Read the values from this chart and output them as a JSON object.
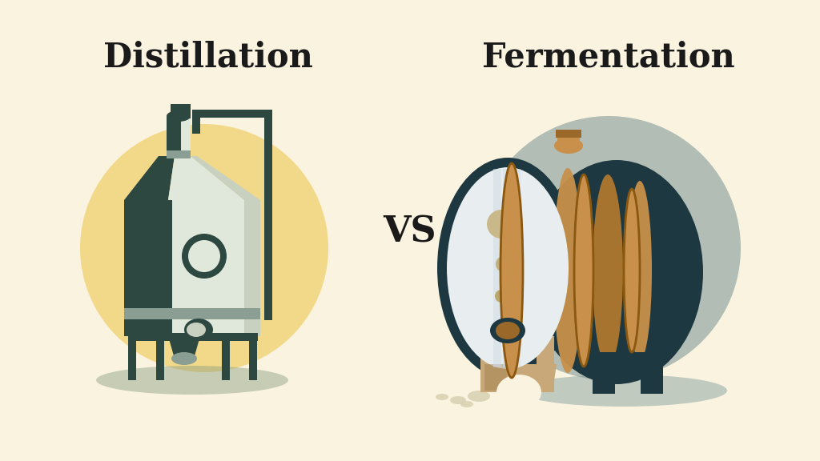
{
  "bg_color": "#FAF3E0",
  "title_left": "Distillation",
  "title_right": "Fermentation",
  "vs_text": "VS",
  "title_fontsize": 30,
  "vs_fontsize": 32,
  "title_color": "#1a1a1a",
  "dist_circle_color": "#F2D98A",
  "ferm_circle_color": "#B2BEB5",
  "still_silver": "#C8D0C0",
  "still_silver_light": "#E0E8DC",
  "still_silver_dark": "#8A9E94",
  "still_dark": "#2D4840",
  "barrel_wood": "#C8904A",
  "barrel_wood_dark": "#9A6828",
  "barrel_dark": "#1D3840",
  "barrel_face_bg": "#E8EEF0",
  "barrel_face_light": "#D0DCE4",
  "stand_wood": "#C8A878",
  "stand_wood_dark": "#9A7848",
  "shadow_dist": "#8A9E80",
  "shadow_ferm": "#7A9898"
}
